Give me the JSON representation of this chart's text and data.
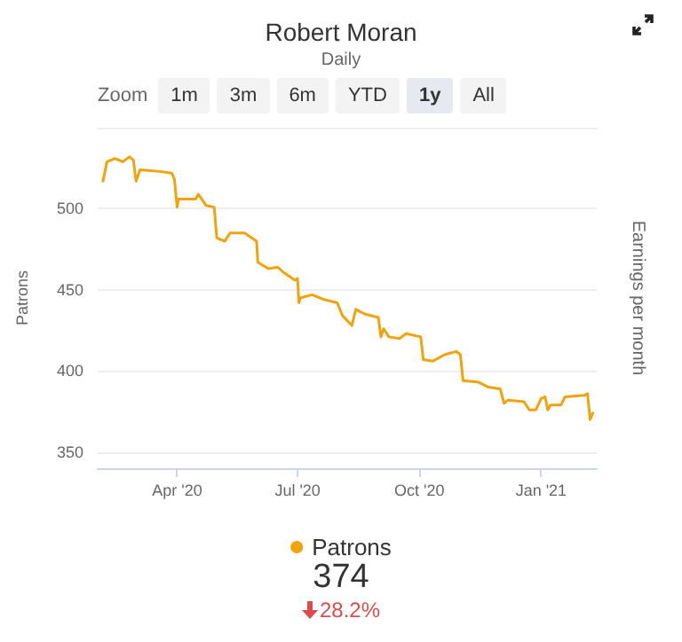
{
  "chart_data": {
    "type": "line",
    "title": "Robert Moran",
    "subtitle": "Daily",
    "ylabel": "Patrons",
    "y2label": "Earnings per month",
    "annotations": [
      "Zoom",
      "1m",
      "3m",
      "6m",
      "YTD",
      "1y",
      "All",
      "374",
      "28.2%"
    ],
    "x": [
      "2020-02-05",
      "2020-02-08",
      "2020-02-14",
      "2020-02-20",
      "2020-02-25",
      "2020-02-28",
      "2020-03-01",
      "2020-03-04",
      "2020-03-19",
      "2020-03-28",
      "2020-03-30",
      "2020-04-01",
      "2020-04-02",
      "2020-04-15",
      "2020-04-17",
      "2020-04-23",
      "2020-04-29",
      "2020-05-01",
      "2020-05-07",
      "2020-05-11",
      "2020-05-22",
      "2020-05-31",
      "2020-06-01",
      "2020-06-09",
      "2020-06-16",
      "2020-06-20",
      "2020-06-29",
      "2020-07-01",
      "2020-07-02",
      "2020-07-03",
      "2020-07-12",
      "2020-07-21",
      "2020-07-31",
      "2020-08-04",
      "2020-08-11",
      "2020-08-14",
      "2020-08-21",
      "2020-08-31",
      "2020-09-02",
      "2020-09-04",
      "2020-09-08",
      "2020-09-16",
      "2020-09-21",
      "2020-10-02",
      "2020-10-04",
      "2020-10-11",
      "2020-10-20",
      "2020-10-29",
      "2020-11-01",
      "2020-11-03",
      "2020-11-15",
      "2020-11-22",
      "2020-12-01",
      "2020-12-04",
      "2020-12-07",
      "2020-12-19",
      "2020-12-23",
      "2020-12-28",
      "2021-01-01",
      "2021-01-04",
      "2021-01-06",
      "2021-01-08",
      "2021-01-16",
      "2021-01-19",
      "2021-02-03",
      "2021-02-05",
      "2021-02-07",
      "2021-02-09"
    ],
    "series": [
      {
        "name": "Patrons",
        "color": "#f0a30a",
        "values": [
          517,
          529,
          531,
          529,
          532,
          530,
          517,
          524,
          523,
          522,
          518,
          501,
          506,
          506,
          509,
          502,
          501,
          482,
          480,
          485,
          485,
          480,
          467,
          463,
          464,
          461,
          456,
          457,
          442,
          445,
          447,
          444,
          442,
          434,
          428,
          438,
          435,
          433,
          421,
          426,
          421,
          420,
          423,
          421,
          407,
          406,
          410,
          412,
          410,
          394,
          393,
          390,
          389,
          380,
          382,
          381,
          376,
          376,
          383,
          384,
          376,
          379,
          379,
          384,
          385,
          386,
          370,
          374
        ]
      }
    ],
    "xlim": [
      "2020-02-01",
      "2021-02-12"
    ],
    "xticks": [
      {
        "value": "2020-04-01",
        "label": "Apr '20"
      },
      {
        "value": "2020-07-01",
        "label": "Jul '20"
      },
      {
        "value": "2020-10-01",
        "label": "Oct '20"
      },
      {
        "value": "2021-01-01",
        "label": "Jan '21"
      }
    ],
    "ylim": [
      340,
      550
    ],
    "yticks": [
      350,
      400,
      450,
      500
    ],
    "grid": "y",
    "legend": "bottom",
    "marker": "none",
    "line_style": "solid"
  }
}
